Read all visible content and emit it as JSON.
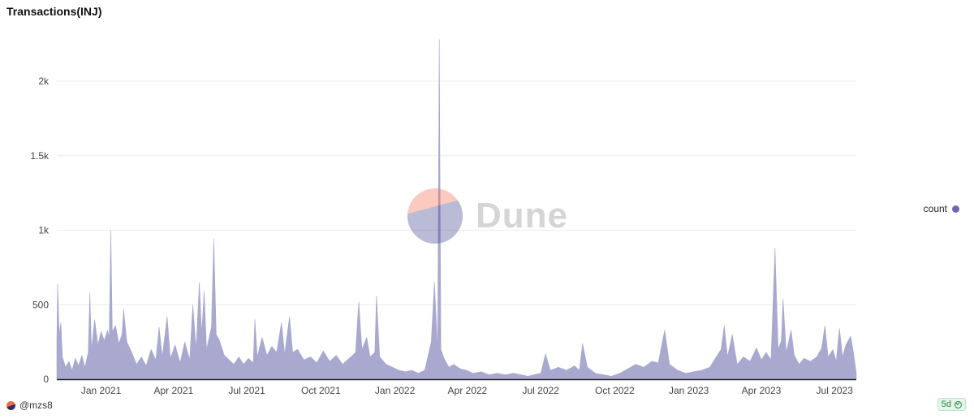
{
  "title": "Transactions(INJ)",
  "legend": {
    "label": "count",
    "color": "#6a6aad"
  },
  "author": "@mzs8",
  "refresh_badge": "5d",
  "watermark": "Dune",
  "chart_data": {
    "type": "area",
    "title": "Transactions(INJ)",
    "xlabel": "",
    "ylabel": "",
    "x_start": "2020-11-07",
    "x_end": "2023-07-28",
    "xlim": [
      "2020-11-07",
      "2023-07-28"
    ],
    "ylim": [
      0,
      2300
    ],
    "y_ticks": [
      0,
      500,
      1000,
      1500,
      2000
    ],
    "y_tick_labels": [
      "0",
      "500",
      "1k",
      "1.5k",
      "2k"
    ],
    "x_ticks": [
      "2021-01-01",
      "2021-04-01",
      "2021-07-01",
      "2021-10-01",
      "2022-01-01",
      "2022-04-01",
      "2022-07-01",
      "2022-10-01",
      "2023-01-01",
      "2023-04-01",
      "2023-07-01"
    ],
    "x_tick_labels": [
      "Jan 2021",
      "Apr 2021",
      "Jul 2021",
      "Oct 2021",
      "Jan 2022",
      "Apr 2022",
      "Jul 2022",
      "Oct 2022",
      "Jan 2023",
      "Apr 2023",
      "Jul 2023"
    ],
    "grid": "horizontal",
    "legend_position": "right",
    "series": [
      {
        "name": "count",
        "color": "#a9a9cf",
        "points": [
          [
            "2020-11-07",
            250
          ],
          [
            "2020-11-08",
            640
          ],
          [
            "2020-11-10",
            300
          ],
          [
            "2020-11-12",
            380
          ],
          [
            "2020-11-14",
            150
          ],
          [
            "2020-11-18",
            80
          ],
          [
            "2020-11-22",
            120
          ],
          [
            "2020-11-26",
            60
          ],
          [
            "2020-11-30",
            140
          ],
          [
            "2020-12-04",
            90
          ],
          [
            "2020-12-08",
            160
          ],
          [
            "2020-12-12",
            80
          ],
          [
            "2020-12-16",
            180
          ],
          [
            "2020-12-18",
            580
          ],
          [
            "2020-12-20",
            200
          ],
          [
            "2020-12-24",
            400
          ],
          [
            "2020-12-28",
            230
          ],
          [
            "2021-01-01",
            320
          ],
          [
            "2021-01-05",
            260
          ],
          [
            "2021-01-09",
            330
          ],
          [
            "2021-01-11",
            280
          ],
          [
            "2021-01-13",
            1000
          ],
          [
            "2021-01-15",
            320
          ],
          [
            "2021-01-19",
            360
          ],
          [
            "2021-01-23",
            240
          ],
          [
            "2021-01-27",
            300
          ],
          [
            "2021-01-29",
            470
          ],
          [
            "2021-02-02",
            250
          ],
          [
            "2021-02-08",
            180
          ],
          [
            "2021-02-14",
            100
          ],
          [
            "2021-02-20",
            150
          ],
          [
            "2021-02-26",
            90
          ],
          [
            "2021-03-04",
            200
          ],
          [
            "2021-03-10",
            130
          ],
          [
            "2021-03-14",
            350
          ],
          [
            "2021-03-18",
            150
          ],
          [
            "2021-03-24",
            420
          ],
          [
            "2021-03-28",
            140
          ],
          [
            "2021-04-03",
            230
          ],
          [
            "2021-04-09",
            110
          ],
          [
            "2021-04-15",
            250
          ],
          [
            "2021-04-21",
            130
          ],
          [
            "2021-04-25",
            500
          ],
          [
            "2021-04-29",
            200
          ],
          [
            "2021-05-03",
            650
          ],
          [
            "2021-05-06",
            300
          ],
          [
            "2021-05-09",
            590
          ],
          [
            "2021-05-12",
            200
          ],
          [
            "2021-05-18",
            350
          ],
          [
            "2021-05-21",
            940
          ],
          [
            "2021-05-24",
            300
          ],
          [
            "2021-05-28",
            260
          ],
          [
            "2021-06-03",
            160
          ],
          [
            "2021-06-09",
            130
          ],
          [
            "2021-06-15",
            100
          ],
          [
            "2021-06-21",
            150
          ],
          [
            "2021-06-27",
            100
          ],
          [
            "2021-07-03",
            140
          ],
          [
            "2021-07-09",
            110
          ],
          [
            "2021-07-11",
            400
          ],
          [
            "2021-07-14",
            150
          ],
          [
            "2021-07-20",
            280
          ],
          [
            "2021-07-26",
            160
          ],
          [
            "2021-08-01",
            220
          ],
          [
            "2021-08-07",
            180
          ],
          [
            "2021-08-13",
            380
          ],
          [
            "2021-08-17",
            170
          ],
          [
            "2021-08-23",
            420
          ],
          [
            "2021-08-27",
            180
          ],
          [
            "2021-09-02",
            200
          ],
          [
            "2021-09-10",
            130
          ],
          [
            "2021-09-18",
            150
          ],
          [
            "2021-09-26",
            110
          ],
          [
            "2021-10-04",
            190
          ],
          [
            "2021-10-12",
            120
          ],
          [
            "2021-10-20",
            160
          ],
          [
            "2021-10-28",
            100
          ],
          [
            "2021-11-05",
            140
          ],
          [
            "2021-11-13",
            180
          ],
          [
            "2021-11-17",
            520
          ],
          [
            "2021-11-21",
            200
          ],
          [
            "2021-11-27",
            280
          ],
          [
            "2021-12-01",
            150
          ],
          [
            "2021-12-07",
            180
          ],
          [
            "2021-12-09",
            560
          ],
          [
            "2021-12-13",
            150
          ],
          [
            "2021-12-21",
            100
          ],
          [
            "2021-12-29",
            80
          ],
          [
            "2022-01-06",
            60
          ],
          [
            "2022-01-14",
            50
          ],
          [
            "2022-01-22",
            60
          ],
          [
            "2022-01-30",
            40
          ],
          [
            "2022-02-07",
            60
          ],
          [
            "2022-02-15",
            250
          ],
          [
            "2022-02-19",
            650
          ],
          [
            "2022-02-23",
            200
          ],
          [
            "2022-02-25",
            2280
          ],
          [
            "2022-02-27",
            200
          ],
          [
            "2022-03-03",
            140
          ],
          [
            "2022-03-09",
            80
          ],
          [
            "2022-03-15",
            100
          ],
          [
            "2022-03-23",
            70
          ],
          [
            "2022-03-31",
            60
          ],
          [
            "2022-04-08",
            40
          ],
          [
            "2022-04-18",
            50
          ],
          [
            "2022-04-28",
            30
          ],
          [
            "2022-05-08",
            40
          ],
          [
            "2022-05-18",
            30
          ],
          [
            "2022-05-28",
            40
          ],
          [
            "2022-06-07",
            30
          ],
          [
            "2022-06-15",
            20
          ],
          [
            "2022-06-23",
            30
          ],
          [
            "2022-07-01",
            40
          ],
          [
            "2022-07-07",
            170
          ],
          [
            "2022-07-13",
            60
          ],
          [
            "2022-07-23",
            80
          ],
          [
            "2022-08-02",
            60
          ],
          [
            "2022-08-12",
            90
          ],
          [
            "2022-08-18",
            60
          ],
          [
            "2022-08-22",
            240
          ],
          [
            "2022-08-28",
            80
          ],
          [
            "2022-09-07",
            40
          ],
          [
            "2022-09-17",
            30
          ],
          [
            "2022-09-27",
            20
          ],
          [
            "2022-10-07",
            40
          ],
          [
            "2022-10-17",
            70
          ],
          [
            "2022-10-27",
            100
          ],
          [
            "2022-11-06",
            80
          ],
          [
            "2022-11-16",
            120
          ],
          [
            "2022-11-24",
            110
          ],
          [
            "2022-12-02",
            330
          ],
          [
            "2022-12-08",
            100
          ],
          [
            "2022-12-18",
            60
          ],
          [
            "2022-12-28",
            40
          ],
          [
            "2023-01-07",
            50
          ],
          [
            "2023-01-17",
            60
          ],
          [
            "2023-01-27",
            80
          ],
          [
            "2023-02-04",
            150
          ],
          [
            "2023-02-10",
            200
          ],
          [
            "2023-02-14",
            360
          ],
          [
            "2023-02-18",
            150
          ],
          [
            "2023-02-24",
            300
          ],
          [
            "2023-03-02",
            100
          ],
          [
            "2023-03-10",
            150
          ],
          [
            "2023-03-18",
            120
          ],
          [
            "2023-03-26",
            210
          ],
          [
            "2023-04-01",
            130
          ],
          [
            "2023-04-07",
            180
          ],
          [
            "2023-04-13",
            130
          ],
          [
            "2023-04-18",
            880
          ],
          [
            "2023-04-22",
            200
          ],
          [
            "2023-04-26",
            260
          ],
          [
            "2023-04-28",
            540
          ],
          [
            "2023-05-02",
            180
          ],
          [
            "2023-05-08",
            330
          ],
          [
            "2023-05-12",
            160
          ],
          [
            "2023-05-18",
            100
          ],
          [
            "2023-05-24",
            140
          ],
          [
            "2023-06-01",
            120
          ],
          [
            "2023-06-09",
            150
          ],
          [
            "2023-06-15",
            210
          ],
          [
            "2023-06-19",
            360
          ],
          [
            "2023-06-23",
            150
          ],
          [
            "2023-06-29",
            200
          ],
          [
            "2023-07-03",
            120
          ],
          [
            "2023-07-07",
            340
          ],
          [
            "2023-07-11",
            150
          ],
          [
            "2023-07-15",
            230
          ],
          [
            "2023-07-21",
            290
          ],
          [
            "2023-07-25",
            160
          ],
          [
            "2023-07-28",
            40
          ]
        ]
      }
    ]
  }
}
